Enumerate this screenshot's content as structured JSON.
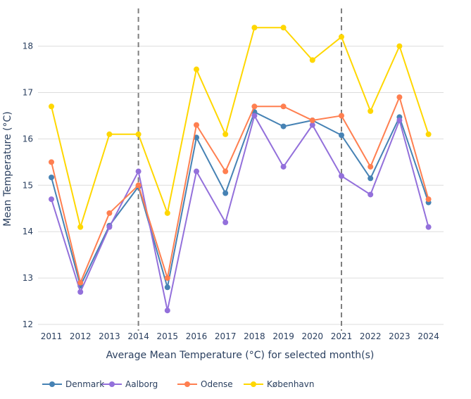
{
  "chart_data": {
    "type": "line",
    "title": "",
    "xlabel": "Average Mean Temperature (°C) for selected month(s)",
    "ylabel": "Mean Temperature (°C)",
    "x": [
      "2011",
      "2012",
      "2013",
      "2014",
      "2015",
      "2016",
      "2017",
      "2018",
      "2019",
      "2020",
      "2021",
      "2022",
      "2023",
      "2024"
    ],
    "yticks": [
      12,
      13,
      14,
      15,
      16,
      17,
      18
    ],
    "ylim": [
      11.95,
      18.85
    ],
    "grid": true,
    "legend_position": "bottom-left",
    "vertical_markers": [
      "2014",
      "2021"
    ],
    "series": [
      {
        "name": "Denmark",
        "color": "#4682b4",
        "values": [
          15.17,
          12.83,
          14.13,
          14.97,
          12.8,
          16.03,
          14.83,
          16.58,
          16.27,
          16.4,
          16.08,
          15.15,
          16.47,
          14.63
        ]
      },
      {
        "name": "Aalborg",
        "color": "#9370db",
        "values": [
          14.7,
          12.7,
          14.1,
          15.3,
          12.3,
          15.3,
          14.2,
          16.5,
          15.4,
          16.3,
          15.2,
          14.8,
          16.4,
          14.1
        ]
      },
      {
        "name": "Odense",
        "color": "#ff7f50",
        "values": [
          15.5,
          12.9,
          14.4,
          15.0,
          13.0,
          16.3,
          15.3,
          16.7,
          16.7,
          16.4,
          16.5,
          15.4,
          16.9,
          14.7
        ]
      },
      {
        "name": "København",
        "color": "#ffd700",
        "values": [
          16.7,
          14.1,
          16.1,
          16.1,
          14.4,
          17.5,
          16.1,
          18.4,
          18.4,
          17.7,
          18.2,
          16.6,
          18.0,
          16.1
        ]
      }
    ]
  }
}
